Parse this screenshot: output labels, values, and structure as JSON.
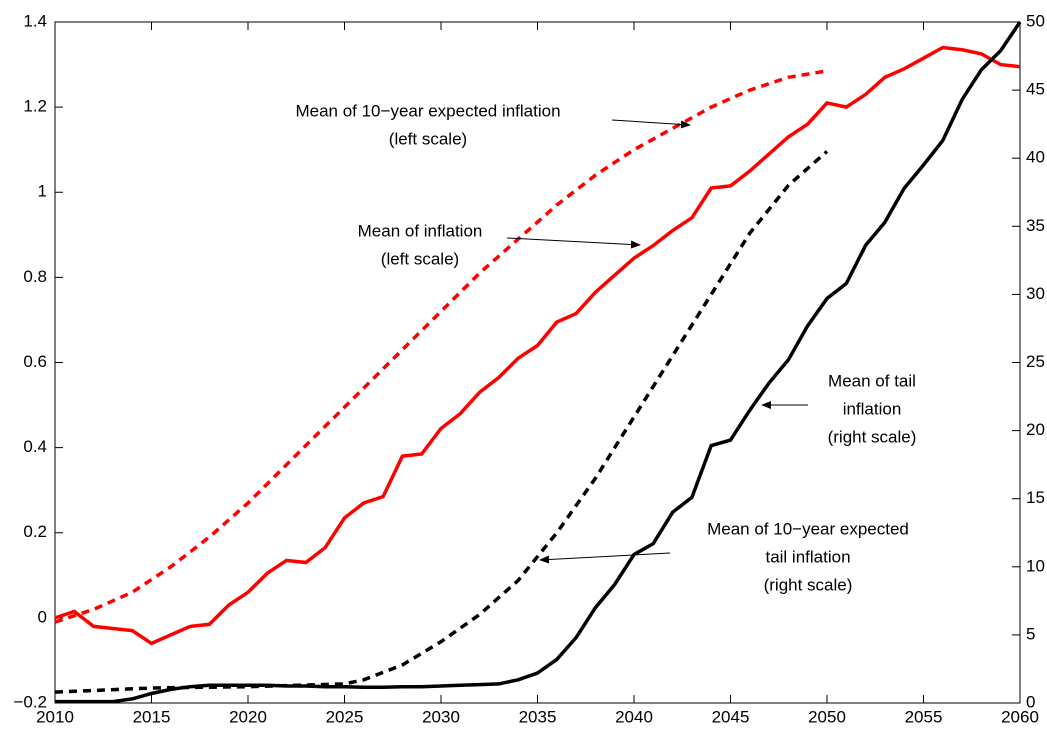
{
  "chart_data": {
    "type": "line",
    "xlim": [
      2010,
      2060
    ],
    "xticks": [
      2010,
      2015,
      2020,
      2025,
      2030,
      2035,
      2040,
      2045,
      2050,
      2055,
      2060
    ],
    "ylim": [
      -0.2,
      1.4
    ],
    "yticks": [
      {
        "value": -0.2,
        "label": "−0.2"
      },
      0,
      0.2,
      0.4,
      0.6,
      0.8,
      1,
      1.2,
      1.4
    ],
    "y2lim": [
      0,
      50
    ],
    "y2ticks": [
      0,
      5,
      10,
      15,
      20,
      25,
      30,
      35,
      40,
      45,
      50
    ],
    "series": [
      {
        "name": "Mean of inflation",
        "color": "#ff0000",
        "dash": false,
        "x": [
          2010,
          2011,
          2012,
          2013,
          2014,
          2015,
          2016,
          2017,
          2018,
          2019,
          2020,
          2021,
          2022,
          2023,
          2024,
          2025,
          2026,
          2027,
          2028,
          2029,
          2030,
          2031,
          2032,
          2033,
          2034,
          2035,
          2036,
          2037,
          2038,
          2039,
          2040,
          2041,
          2042,
          2043,
          2044,
          2045,
          2046,
          2047,
          2048,
          2049,
          2050,
          2051,
          2052,
          2053,
          2054,
          2055,
          2056,
          2057,
          2058,
          2059,
          2060
        ],
        "values": [
          0,
          0.015,
          -0.02,
          -0.025,
          -0.03,
          -0.06,
          -0.04,
          -0.02,
          -0.015,
          0.03,
          0.06,
          0.105,
          0.135,
          0.13,
          0.165,
          0.235,
          0.27,
          0.285,
          0.38,
          0.385,
          0.445,
          0.48,
          0.53,
          0.565,
          0.61,
          0.64,
          0.695,
          0.715,
          0.765,
          0.805,
          0.845,
          0.875,
          0.91,
          0.94,
          1.01,
          1.015,
          1.05,
          1.09,
          1.13,
          1.16,
          1.21,
          1.2,
          1.23,
          1.27,
          1.29,
          1.315,
          1.34,
          1.335,
          1.325,
          1.3,
          1.295
        ]
      },
      {
        "name": "Mean of 10-year expected inflation",
        "color": "#ff0000",
        "dash": true,
        "x": [
          2010,
          2012,
          2014,
          2016,
          2018,
          2020,
          2022,
          2024,
          2026,
          2028,
          2030,
          2032,
          2034,
          2036,
          2038,
          2040,
          2042,
          2044,
          2046,
          2048,
          2050
        ],
        "values": [
          -0.01,
          0.02,
          0.06,
          0.12,
          0.19,
          0.27,
          0.36,
          0.45,
          0.54,
          0.63,
          0.72,
          0.81,
          0.89,
          0.97,
          1.04,
          1.1,
          1.15,
          1.2,
          1.24,
          1.27,
          1.285
        ]
      },
      {
        "name": "Mean of tail inflation",
        "color": "#000000",
        "dash": false,
        "axis": "y2",
        "x": [
          2010,
          2011,
          2012,
          2013,
          2014,
          2015,
          2016,
          2017,
          2018,
          2019,
          2020,
          2021,
          2022,
          2023,
          2024,
          2025,
          2026,
          2027,
          2028,
          2029,
          2030,
          2031,
          2032,
          2033,
          2034,
          2035,
          2036,
          2037,
          2038,
          2039,
          2040,
          2041,
          2042,
          2043,
          2044,
          2045,
          2046,
          2047,
          2048,
          2049,
          2050,
          2051,
          2052,
          2053,
          2054,
          2055,
          2056,
          2057,
          2058,
          2059,
          2060
        ],
        "values": [
          0.1,
          0.1,
          0.1,
          0.1,
          0.3,
          0.7,
          1.0,
          1.2,
          1.3,
          1.3,
          1.3,
          1.3,
          1.25,
          1.25,
          1.2,
          1.2,
          1.15,
          1.15,
          1.2,
          1.2,
          1.25,
          1.3,
          1.35,
          1.4,
          1.7,
          2.2,
          3.2,
          4.8,
          7.0,
          8.7,
          10.9,
          11.7,
          14.0,
          15.1,
          18.9,
          19.3,
          21.5,
          23.5,
          25.2,
          27.7,
          29.7,
          30.8,
          33.6,
          35.3,
          37.8,
          39.5,
          41.3,
          44.3,
          46.5,
          47.9,
          50
        ]
      },
      {
        "name": "Mean of 10-year expected tail inflation",
        "color": "#000000",
        "dash": true,
        "axis": "y2",
        "x": [
          2010,
          2015,
          2020,
          2025,
          2026,
          2028,
          2030,
          2032,
          2034,
          2036,
          2038,
          2040,
          2042,
          2044,
          2046,
          2048,
          2050
        ],
        "values": [
          0.8,
          1.1,
          1.2,
          1.4,
          1.7,
          2.8,
          4.5,
          6.5,
          9.0,
          12.5,
          16.5,
          21.0,
          25.5,
          30.0,
          34.5,
          38.0,
          40.5
        ]
      }
    ],
    "annotations": [
      {
        "lines": [
          "Mean of 10−year expected inflation",
          "(left scale)"
        ]
      },
      {
        "lines": [
          "Mean of inflation",
          "(left scale)"
        ]
      },
      {
        "lines": [
          "Mean of tail",
          "inflation",
          "(right scale)"
        ]
      },
      {
        "lines": [
          "Mean of 10−year expected",
          "tail inflation",
          "(right scale)"
        ]
      }
    ]
  }
}
